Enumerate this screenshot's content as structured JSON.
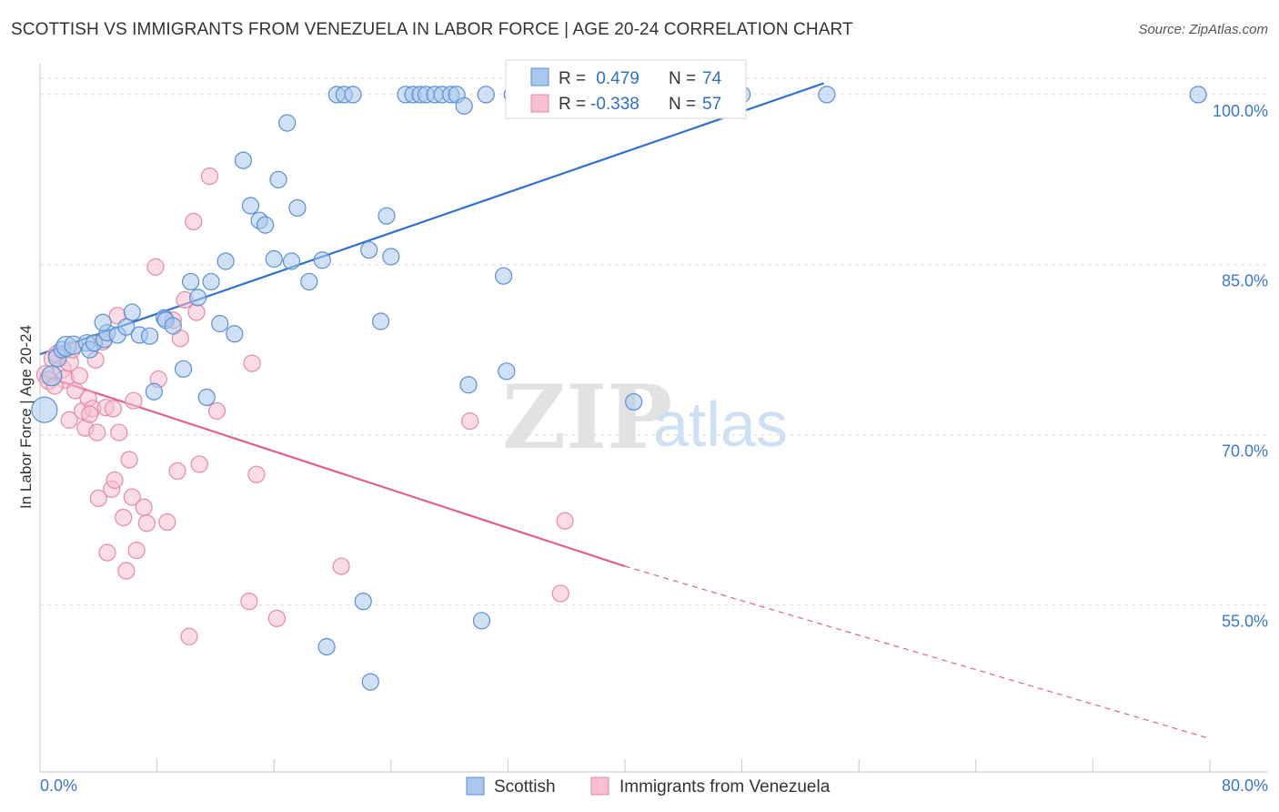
{
  "title": "SCOTTISH VS IMMIGRANTS FROM VENEZUELA IN LABOR FORCE | AGE 20-24 CORRELATION CHART",
  "source": "Source: ZipAtlas.com",
  "watermark": {
    "zip": "ZIP",
    "atlas": "atlas"
  },
  "colors": {
    "scottish_fill": "#aac8ee",
    "scottish_stroke": "#5b8fd0",
    "scottish_line": "#2f70c9",
    "venezuela_fill": "#f7bfd0",
    "venezuela_stroke": "#e38aa6",
    "venezuela_line": "#e0608c",
    "tick_color": "#3a78c8",
    "grid": "#dcdcdc"
  },
  "legend_top": {
    "rows": [
      {
        "r_label": "R =",
        "r_value": " 0.479",
        "n_label": "N =",
        "n_value": "74"
      },
      {
        "r_label": "R =",
        "r_value": "-0.338",
        "n_label": "N =",
        "n_value": "57"
      }
    ]
  },
  "legend_bottom": {
    "series": [
      "Scottish",
      "Immigrants from Venezuela"
    ]
  },
  "chart_data": {
    "type": "scatter",
    "title": "SCOTTISH VS IMMIGRANTS FROM VENEZUELA IN LABOR FORCE | AGE 20-24 CORRELATION CHART",
    "xlabel": "",
    "ylabel": "In Labor Force | Age 20-24",
    "xlim": [
      0,
      80
    ],
    "ylim": [
      40.5,
      102
    ],
    "x_tick_labels": [
      "0.0%",
      "80.0%"
    ],
    "y_ticks": [
      55,
      70,
      85,
      100
    ],
    "y_tick_labels": [
      "55.0%",
      "70.0%",
      "85.0%",
      "100.0%"
    ],
    "grid": true,
    "legend_placement": "top-center and bottom",
    "series": [
      {
        "name": "Scottish",
        "r": 0.479,
        "n": 74,
        "trend": {
          "x": [
            0,
            53.6
          ],
          "y": [
            77.1,
            101.0
          ]
        },
        "points": [
          [
            0.3,
            72.2,
            14
          ],
          [
            0.8,
            75.2,
            11
          ],
          [
            1.2,
            76.8,
            10
          ],
          [
            1.5,
            77.5,
            9
          ],
          [
            1.8,
            77.8,
            11
          ],
          [
            2.3,
            77.9,
            10
          ],
          [
            3.2,
            78.1,
            9
          ],
          [
            3.4,
            77.5,
            9
          ],
          [
            3.7,
            78.1,
            9
          ],
          [
            4.4,
            78.4,
            9
          ],
          [
            4.6,
            79.0,
            9
          ],
          [
            4.3,
            79.9,
            9
          ],
          [
            5.3,
            78.8,
            9
          ],
          [
            5.9,
            79.5,
            9
          ],
          [
            6.3,
            80.8,
            9
          ],
          [
            6.8,
            78.8,
            9
          ],
          [
            7.5,
            78.7,
            9
          ],
          [
            7.8,
            73.8,
            9
          ],
          [
            8.5,
            80.3,
            9
          ],
          [
            8.6,
            80.1,
            9
          ],
          [
            9.1,
            79.6,
            9
          ],
          [
            9.8,
            75.8,
            9
          ],
          [
            10.3,
            83.5,
            9
          ],
          [
            10.8,
            82.1,
            9
          ],
          [
            11.4,
            73.3,
            9
          ],
          [
            11.7,
            83.5,
            9
          ],
          [
            12.3,
            79.8,
            9
          ],
          [
            12.7,
            85.3,
            9
          ],
          [
            13.3,
            78.9,
            9
          ],
          [
            13.9,
            94.2,
            9
          ],
          [
            14.4,
            90.2,
            9
          ],
          [
            15.0,
            88.9,
            9
          ],
          [
            15.4,
            88.5,
            9
          ],
          [
            16.0,
            85.5,
            9
          ],
          [
            16.3,
            92.5,
            9
          ],
          [
            16.9,
            97.5,
            9
          ],
          [
            17.2,
            85.3,
            9
          ],
          [
            17.6,
            90.0,
            9
          ],
          [
            18.4,
            83.5,
            9
          ],
          [
            19.3,
            85.4,
            9
          ],
          [
            20.3,
            100.0,
            9
          ],
          [
            20.8,
            100.0,
            9
          ],
          [
            21.4,
            100.0,
            9
          ],
          [
            22.1,
            55.3,
            9
          ],
          [
            22.5,
            86.3,
            9
          ],
          [
            23.3,
            80.0,
            9
          ],
          [
            23.7,
            89.3,
            9
          ],
          [
            24.0,
            85.7,
            9
          ],
          [
            25.0,
            100.0,
            9
          ],
          [
            25.5,
            100.0,
            9
          ],
          [
            26.0,
            100.0,
            9
          ],
          [
            26.4,
            100.0,
            9
          ],
          [
            27.0,
            100.0,
            9
          ],
          [
            27.5,
            100.0,
            9
          ],
          [
            28.1,
            100.0,
            9
          ],
          [
            28.5,
            100.0,
            9
          ],
          [
            29.0,
            99.0,
            9
          ],
          [
            29.3,
            74.4,
            9
          ],
          [
            30.5,
            100.0,
            9
          ],
          [
            31.7,
            84.0,
            9
          ],
          [
            31.9,
            75.6,
            9
          ],
          [
            19.6,
            51.3,
            9
          ],
          [
            22.6,
            48.2,
            9
          ],
          [
            30.2,
            53.6,
            9
          ],
          [
            32.3,
            100.0,
            9
          ],
          [
            34.0,
            100.0,
            9
          ],
          [
            35.7,
            100.0,
            9
          ],
          [
            37.2,
            100.0,
            9
          ],
          [
            40.0,
            100.0,
            9
          ],
          [
            40.6,
            72.9,
            9
          ],
          [
            43.4,
            100.0,
            9
          ],
          [
            48.0,
            100.0,
            9
          ],
          [
            53.8,
            100.0,
            9
          ],
          [
            79.2,
            100.0,
            9
          ]
        ]
      },
      {
        "name": "Immigrants from Venezuela",
        "r": -0.338,
        "n": 57,
        "trend": {
          "x": [
            0,
            40.0
          ],
          "y": [
            75.3,
            58.4
          ]
        },
        "trend_dashed": {
          "x": [
            40.0,
            80.0
          ],
          "y": [
            58.4,
            43.2
          ]
        },
        "points": [
          [
            0.4,
            75.3,
            10
          ],
          [
            0.6,
            74.8,
            10
          ],
          [
            0.9,
            76.7,
            10
          ],
          [
            1.2,
            77.1,
            10
          ],
          [
            1.5,
            75.8,
            10
          ],
          [
            1.7,
            74.9,
            10
          ],
          [
            2.0,
            76.4,
            10
          ],
          [
            2.0,
            71.3,
            9
          ],
          [
            2.4,
            73.9,
            9
          ],
          [
            2.7,
            75.2,
            9
          ],
          [
            2.9,
            72.1,
            9
          ],
          [
            3.1,
            70.6,
            9
          ],
          [
            3.3,
            73.2,
            9
          ],
          [
            3.6,
            72.3,
            9
          ],
          [
            3.9,
            70.2,
            9
          ],
          [
            4.0,
            64.4,
            9
          ],
          [
            4.3,
            78.2,
            9
          ],
          [
            4.5,
            72.4,
            9
          ],
          [
            4.6,
            59.6,
            9
          ],
          [
            4.9,
            65.2,
            9
          ],
          [
            5.1,
            66.0,
            9
          ],
          [
            5.3,
            80.5,
            9
          ],
          [
            5.4,
            70.2,
            9
          ],
          [
            5.7,
            62.7,
            9
          ],
          [
            5.9,
            58.0,
            9
          ],
          [
            6.1,
            67.8,
            9
          ],
          [
            6.3,
            64.5,
            9
          ],
          [
            6.4,
            73.0,
            9
          ],
          [
            6.6,
            59.8,
            9
          ],
          [
            7.1,
            63.6,
            9
          ],
          [
            7.3,
            62.2,
            9
          ],
          [
            7.9,
            84.8,
            9
          ],
          [
            8.1,
            74.9,
            9
          ],
          [
            8.7,
            62.3,
            9
          ],
          [
            9.1,
            80.1,
            9
          ],
          [
            9.4,
            66.8,
            9
          ],
          [
            9.6,
            78.5,
            9
          ],
          [
            9.9,
            81.9,
            9
          ],
          [
            10.2,
            52.2,
            9
          ],
          [
            10.5,
            88.8,
            9
          ],
          [
            10.7,
            80.8,
            9
          ],
          [
            10.9,
            67.4,
            9
          ],
          [
            11.6,
            92.8,
            9
          ],
          [
            14.3,
            55.3,
            9
          ],
          [
            14.5,
            76.3,
            9
          ],
          [
            14.8,
            66.5,
            9
          ],
          [
            16.2,
            53.8,
            9
          ],
          [
            20.6,
            58.4,
            9
          ],
          [
            29.4,
            71.2,
            9
          ],
          [
            35.6,
            56.0,
            9
          ],
          [
            35.9,
            62.4,
            9
          ],
          [
            3.8,
            76.6,
            9
          ],
          [
            2.2,
            77.5,
            9
          ],
          [
            1.0,
            74.3,
            9
          ],
          [
            3.4,
            71.8,
            9
          ],
          [
            5.0,
            72.3,
            9
          ],
          [
            12.1,
            72.1,
            9
          ]
        ]
      }
    ]
  }
}
